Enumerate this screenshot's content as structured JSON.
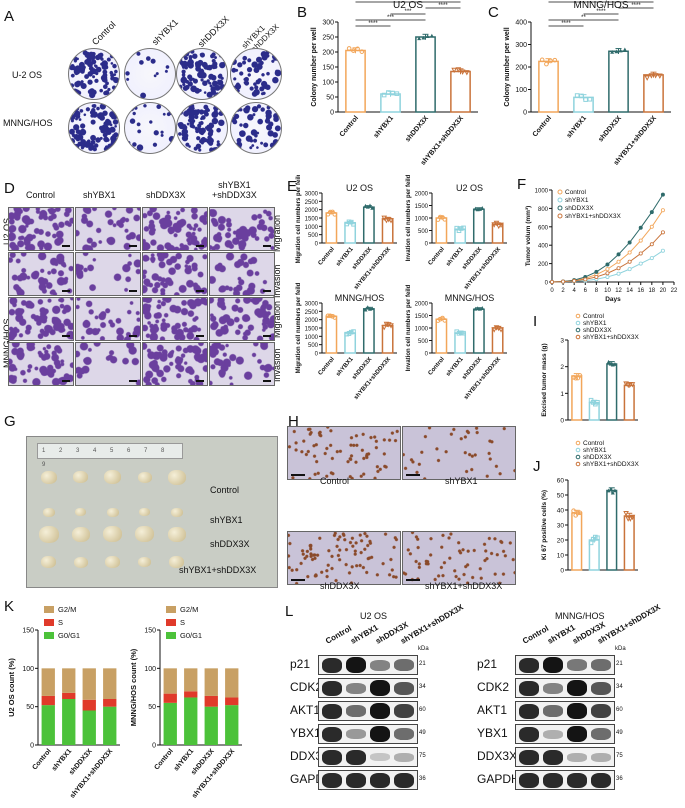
{
  "panels": {
    "A": {
      "letter": "A",
      "cols": [
        "Control",
        "shYBX1",
        "shDDX3X",
        "shYBX1\n+shDDX3X"
      ],
      "rows": [
        "U-2 OS",
        "MNNG/HOS"
      ]
    },
    "B": {
      "letter": "B",
      "title": "U2 OS",
      "ylabel": "Colony number per well",
      "sig": [
        "****",
        "***",
        "***",
        "****",
        "****"
      ]
    },
    "C": {
      "letter": "C",
      "title": "MNNG/HOS",
      "ylabel": "Colony number per well",
      "sig": [
        "****",
        "**",
        "****",
        "****",
        "****"
      ]
    },
    "D": {
      "letter": "D",
      "cols": [
        "Control",
        "shYBX1",
        "shDDX3X",
        "shYBX1\n+shDDX3X"
      ],
      "groups": [
        "U2 OS",
        "MNNG/HOS"
      ],
      "rows": [
        "Migration",
        "Invasion",
        "Migration",
        "Invasion"
      ]
    },
    "E": {
      "letter": "E",
      "plots": [
        {
          "title": "U2 OS",
          "ylabel": "Migration cell numbers per feild"
        },
        {
          "title": "U2 OS",
          "ylabel": "Invation cell numbers per feild"
        },
        {
          "title": "MNNG/HOS",
          "ylabel": "Migration cell numbers per feild"
        },
        {
          "title": "MNNG/HOS",
          "ylabel": "Invation cell numbers per feild"
        }
      ]
    },
    "F": {
      "letter": "F",
      "ylabel": "Tumor volum (mm³)",
      "xlabel": "Days",
      "legend": [
        "Control",
        "shYBX1",
        "shDDX3X",
        "shYBX1+shDDX3X"
      ]
    },
    "G": {
      "letter": "G",
      "ruler": "1 2 3 4 5 6 7 8 9",
      "rows": [
        "Control",
        "shYBX1",
        "shDDX3X",
        "shYBX1+shDDX3X"
      ]
    },
    "H": {
      "letter": "H",
      "labels": [
        "Control",
        "shYBX1",
        "shDDX3X",
        "shYBX1+shDDX3X"
      ]
    },
    "I": {
      "letter": "I",
      "ylabel": "Excised tumor mass (g)",
      "legend": [
        "Control",
        "shYBX1",
        "shDDX3X",
        "shYBX1+shDDX3X"
      ]
    },
    "J": {
      "letter": "J",
      "ylabel": "Ki 67 positive cells (%)",
      "legend": [
        "Control",
        "shYBX1",
        "shDDX3X",
        "shYBX1+shDDX3X"
      ]
    },
    "K": {
      "letter": "K",
      "plots": [
        {
          "ylabel": "U2 OS count (%)"
        },
        {
          "ylabel": "MNNG/HOS count (%)"
        }
      ],
      "legend": [
        "G2/M",
        "S",
        "G0/G1"
      ]
    },
    "L": {
      "letter": "L",
      "groups": [
        "U2 OS",
        "MNNG/HOS"
      ],
      "lanes": [
        "Control",
        "shYBX1",
        "shDDX3X",
        "shYBX1+shDDX3X"
      ],
      "kda": "kDa",
      "proteins": [
        {
          "name": "p21",
          "kda": "21"
        },
        {
          "name": "CDK2",
          "kda": "34"
        },
        {
          "name": "AKT1",
          "kda": "60"
        },
        {
          "name": "YBX1",
          "kda": "49"
        },
        {
          "name": "DDX3X",
          "kda": "75"
        },
        {
          "name": "GAPDH",
          "kda": "36"
        }
      ]
    }
  },
  "groups": [
    "Control",
    "shYBX1",
    "shDDX3X",
    "shYBX1+shDDX3X"
  ],
  "colors": {
    "control": "#f2a65a",
    "shYBX1": "#8fd3dd",
    "shDDX3X": "#2f6b6b",
    "combo": "#c9733a",
    "g2m": "#c8a064",
    "s": "#e03a2a",
    "g0g1": "#4cc23a"
  },
  "chart_data": [
    {
      "id": "B",
      "type": "bar",
      "title": "U2 OS",
      "categories": [
        "Control",
        "shYBX1",
        "shDDX3X",
        "shYBX1+shDDX3X"
      ],
      "values": [
        205,
        60,
        250,
        135
      ],
      "ylabel": "Colony number per well",
      "ylim": [
        0,
        300
      ],
      "yticks": [
        0,
        50,
        100,
        150,
        200,
        250,
        300
      ]
    },
    {
      "id": "C",
      "type": "bar",
      "title": "MNNG/HOS",
      "categories": [
        "Control",
        "shYBX1",
        "shDDX3X",
        "shYBX1+shDDX3X"
      ],
      "values": [
        225,
        65,
        270,
        165
      ],
      "ylabel": "Colony number per well",
      "ylim": [
        0,
        400
      ],
      "yticks": [
        0,
        100,
        200,
        300,
        400
      ]
    },
    {
      "id": "E1",
      "type": "bar",
      "title": "U2 OS",
      "categories": [
        "Control",
        "shYBX1",
        "shDDX3X",
        "shYBX1+shDDX3X"
      ],
      "values": [
        1800,
        1200,
        2150,
        1450
      ],
      "ylim": [
        0,
        3000
      ],
      "yticks": [
        0,
        500,
        1000,
        1500,
        2000,
        2500,
        3000
      ]
    },
    {
      "id": "E2",
      "type": "bar",
      "title": "U2 OS",
      "categories": [
        "Control",
        "shYBX1",
        "shDDX3X",
        "shYBX1+shDDX3X"
      ],
      "values": [
        1000,
        550,
        1350,
        750
      ],
      "ylim": [
        0,
        2000
      ],
      "yticks": [
        0,
        500,
        1000,
        1500,
        2000
      ]
    },
    {
      "id": "E3",
      "type": "bar",
      "title": "MNNG/HOS",
      "categories": [
        "Control",
        "shYBX1",
        "shDDX3X",
        "shYBX1+shDDX3X"
      ],
      "values": [
        2200,
        1200,
        2650,
        1650
      ],
      "ylim": [
        0,
        3000
      ],
      "yticks": [
        0,
        500,
        1000,
        1500,
        2000,
        2500,
        3000
      ]
    },
    {
      "id": "E4",
      "type": "bar",
      "title": "MNNG/HOS",
      "categories": [
        "Control",
        "shYBX1",
        "shDDX3X",
        "shYBX1+shDDX3X"
      ],
      "values": [
        1350,
        800,
        1750,
        1000
      ],
      "ylim": [
        0,
        2000
      ],
      "yticks": [
        0,
        500,
        1000,
        1500,
        2000
      ]
    },
    {
      "id": "F",
      "type": "line",
      "xlabel": "Days",
      "ylabel": "Tumor volum (mm³)",
      "x": [
        0,
        2,
        4,
        6,
        8,
        10,
        12,
        14,
        16,
        18,
        20
      ],
      "xticks": [
        0,
        2,
        4,
        6,
        8,
        10,
        12,
        14,
        16,
        18,
        20,
        22
      ],
      "ylim": [
        0,
        1000
      ],
      "yticks": [
        0,
        200,
        400,
        600,
        800,
        1000
      ],
      "series": [
        {
          "name": "Control",
          "values": [
            0,
            5,
            15,
            40,
            80,
            140,
            220,
            320,
            450,
            600,
            780
          ]
        },
        {
          "name": "shYBX1",
          "values": [
            0,
            3,
            8,
            15,
            30,
            55,
            90,
            140,
            200,
            260,
            340
          ]
        },
        {
          "name": "shDDX3X",
          "values": [
            0,
            6,
            20,
            55,
            110,
            190,
            300,
            430,
            590,
            760,
            950
          ]
        },
        {
          "name": "shYBX1+shDDX3X",
          "values": [
            0,
            4,
            12,
            28,
            55,
            95,
            150,
            220,
            310,
            410,
            540
          ]
        }
      ]
    },
    {
      "id": "I",
      "type": "bar",
      "ylabel": "Excised tumor mass (g)",
      "categories": [
        "Control",
        "shYBX1",
        "shDDX3X",
        "shYBX1+shDDX3X"
      ],
      "values": [
        1.65,
        0.65,
        2.1,
        1.3
      ],
      "ylim": [
        0,
        3
      ],
      "yticks": [
        0,
        1,
        2,
        3
      ]
    },
    {
      "id": "J",
      "type": "bar",
      "ylabel": "Ki 67 positive cells (%)",
      "categories": [
        "Control",
        "shYBX1",
        "shDDX3X",
        "shYBX1+shDDX3X"
      ],
      "values": [
        38,
        20,
        53,
        36
      ],
      "ylim": [
        0,
        60
      ],
      "yticks": [
        0,
        10,
        20,
        30,
        40,
        50,
        60
      ]
    },
    {
      "id": "K1",
      "type": "bar",
      "ylabel": "U2 OS count (%)",
      "categories": [
        "Control",
        "shYBX1",
        "shDDX3X",
        "shYBX1+shDDX3X"
      ],
      "series": [
        {
          "name": "G0/G1",
          "values": [
            52,
            60,
            45,
            50
          ]
        },
        {
          "name": "S",
          "values": [
            12,
            8,
            14,
            10
          ]
        },
        {
          "name": "G2/M",
          "values": [
            36,
            32,
            41,
            40
          ]
        }
      ],
      "ylim": [
        0,
        150
      ],
      "yticks": [
        0,
        50,
        100,
        150
      ]
    },
    {
      "id": "K2",
      "type": "bar",
      "ylabel": "MNNG/HOS count (%)",
      "categories": [
        "Control",
        "shYBX1",
        "shDDX3X",
        "shYBX1+shDDX3X"
      ],
      "series": [
        {
          "name": "G0/G1",
          "values": [
            55,
            62,
            50,
            52
          ]
        },
        {
          "name": "S",
          "values": [
            12,
            8,
            14,
            10
          ]
        },
        {
          "name": "G2/M",
          "values": [
            33,
            30,
            36,
            38
          ]
        }
      ],
      "ylim": [
        0,
        150
      ],
      "yticks": [
        0,
        50,
        100,
        150
      ]
    }
  ]
}
